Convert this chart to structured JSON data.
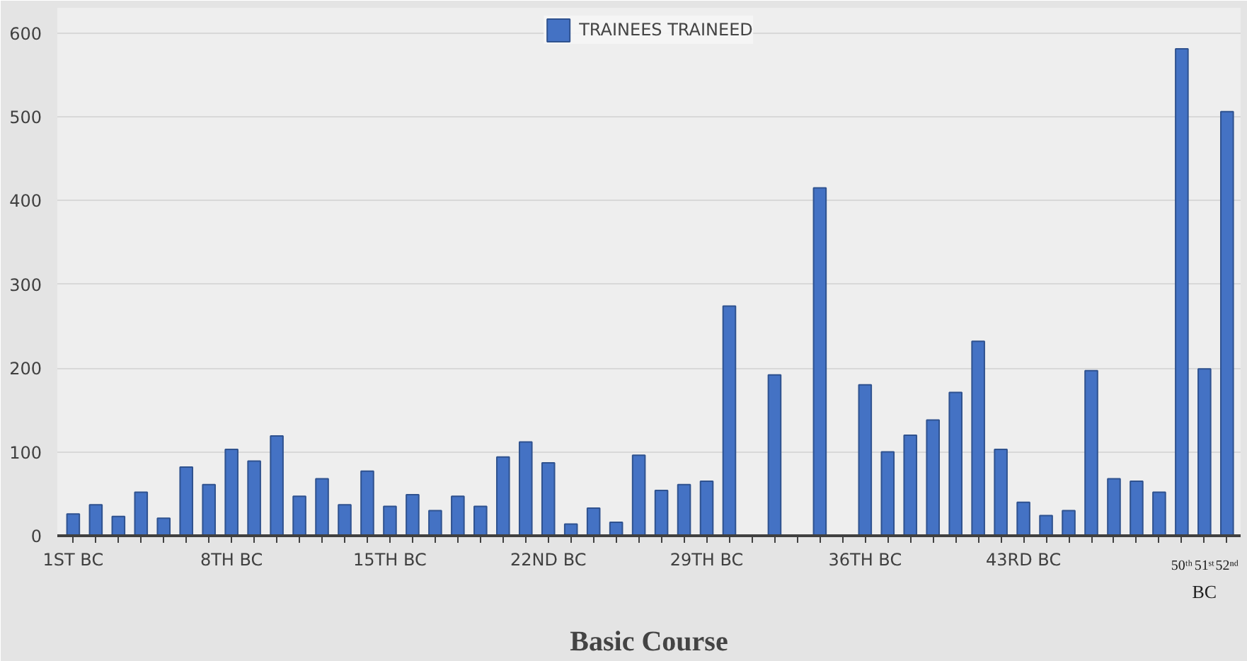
{
  "chart_data": {
    "type": "bar",
    "xlabel": "Basic Course",
    "categories": [
      "1ST BC",
      null,
      null,
      null,
      null,
      null,
      null,
      "8TH BC",
      null,
      null,
      null,
      null,
      null,
      null,
      "15TH BC",
      null,
      null,
      null,
      null,
      null,
      null,
      "22ND BC",
      null,
      null,
      null,
      null,
      null,
      null,
      "29TH BC",
      null,
      null,
      null,
      null,
      null,
      null,
      "36TH BC",
      null,
      null,
      null,
      null,
      null,
      null,
      "43RD BC",
      null,
      null,
      null,
      null,
      null,
      null,
      "50ᵗʰ",
      "51ˢᵗ",
      "52ⁿᵈ"
    ],
    "series": [
      {
        "name": "TRAINEES TRAINEED",
        "color": "#4472c4",
        "values": [
          26,
          37,
          23,
          52,
          21,
          82,
          61,
          103,
          89,
          119,
          47,
          68,
          37,
          77,
          35,
          49,
          30,
          47,
          35,
          94,
          112,
          87,
          14,
          33,
          16,
          96,
          54,
          61,
          65,
          274,
          null,
          192,
          null,
          415,
          null,
          180,
          100,
          120,
          138,
          171,
          232,
          103,
          40,
          24,
          30,
          197,
          68,
          65,
          52,
          581,
          199,
          506
        ]
      }
    ],
    "annotations": [
      "BC"
    ],
    "ylim": [
      0,
      630
    ],
    "yticks": [
      0,
      100,
      200,
      300,
      400,
      500,
      600
    ],
    "grid": "y",
    "legend": "top"
  }
}
